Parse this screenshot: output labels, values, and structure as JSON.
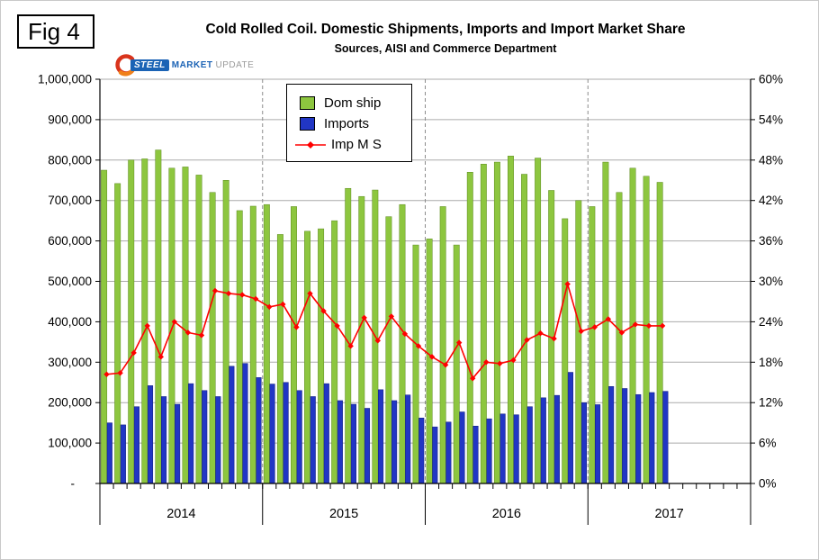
{
  "fig_label": "Fig 4",
  "title": "Cold Rolled Coil. Domestic Shipments, Imports and Import Market Share",
  "subtitle": "Sources, AISI and Commerce Department",
  "logo": {
    "steel": "STEEL",
    "market": "MARKET",
    "update": "UPDATE"
  },
  "legend": [
    {
      "label": "Dom ship",
      "type": "bar",
      "color": "#8dc63f"
    },
    {
      "label": "Imports",
      "type": "bar",
      "color": "#2136c4"
    },
    {
      "label": "Imp M S",
      "type": "line",
      "color": "#ff0000"
    }
  ],
  "chart_data": {
    "type": "bar",
    "combo": true,
    "title": "Cold Rolled Coil. Domestic Shipments, Imports and Import Market Share",
    "subtitle": "Sources, AISI and Commerce Department",
    "months": [
      "2014-01",
      "2014-02",
      "2014-03",
      "2014-04",
      "2014-05",
      "2014-06",
      "2014-07",
      "2014-08",
      "2014-09",
      "2014-10",
      "2014-11",
      "2014-12",
      "2015-01",
      "2015-02",
      "2015-03",
      "2015-04",
      "2015-05",
      "2015-06",
      "2015-07",
      "2015-08",
      "2015-09",
      "2015-10",
      "2015-11",
      "2015-12",
      "2016-01",
      "2016-02",
      "2016-03",
      "2016-04",
      "2016-05",
      "2016-06",
      "2016-07",
      "2016-08",
      "2016-09",
      "2016-10",
      "2016-11",
      "2016-12",
      "2017-01",
      "2017-02",
      "2017-03",
      "2017-04",
      "2017-05",
      "2017-06"
    ],
    "series": [
      {
        "name": "Dom ship",
        "type": "bar",
        "axis": "left",
        "color": "#8dc63f",
        "values": [
          775000,
          742000,
          800000,
          803000,
          825000,
          780000,
          783000,
          763000,
          720000,
          750000,
          675000,
          686000,
          690000,
          616000,
          685000,
          624000,
          630000,
          650000,
          730000,
          710000,
          726000,
          660000,
          690000,
          590000,
          605000,
          685000,
          590000,
          770000,
          790000,
          795000,
          810000,
          765000,
          805000,
          725000,
          655000,
          700000,
          685000,
          795000,
          720000,
          780000,
          760000,
          745000
        ]
      },
      {
        "name": "Imports",
        "type": "bar",
        "axis": "left",
        "color": "#2136c4",
        "values": [
          150000,
          145000,
          190000,
          242000,
          215000,
          196000,
          247000,
          230000,
          215000,
          290000,
          297000,
          262000,
          246000,
          250000,
          230000,
          215000,
          247000,
          205000,
          196000,
          186000,
          232000,
          205000,
          219000,
          162000,
          140000,
          152000,
          177000,
          142000,
          160000,
          172000,
          170000,
          190000,
          212000,
          218000,
          275000,
          200000,
          195000,
          240000,
          235000,
          220000,
          225000,
          228000
        ]
      },
      {
        "name": "Imp M S",
        "type": "line",
        "axis": "right",
        "color": "#ff0000",
        "marker": "diamond",
        "values": [
          16.2,
          16.4,
          19.4,
          23.4,
          18.8,
          24.0,
          22.4,
          22.0,
          28.6,
          28.2,
          28.0,
          27.4,
          26.2,
          26.6,
          23.2,
          28.2,
          25.6,
          23.4,
          20.4,
          24.6,
          21.2,
          24.8,
          22.2,
          20.4,
          18.8,
          17.6,
          20.9,
          15.6,
          18.0,
          17.8,
          18.3,
          21.3,
          22.3,
          21.5,
          29.6,
          22.6,
          23.2,
          24.4,
          22.4,
          23.6,
          23.4,
          23.4
        ]
      }
    ],
    "left_axis": {
      "min": 0,
      "max": 1000000,
      "step": 100000,
      "tick_labels": [
        "-",
        "100,000",
        "200,000",
        "300,000",
        "400,000",
        "500,000",
        "600,000",
        "700,000",
        "800,000",
        "900,000",
        "1,000,000"
      ]
    },
    "right_axis": {
      "min": 0,
      "max": 60,
      "step": 6,
      "tick_labels": [
        "0%",
        "6%",
        "12%",
        "18%",
        "24%",
        "30%",
        "36%",
        "42%",
        "48%",
        "54%",
        "60%"
      ]
    },
    "x_axis": {
      "year_labels": [
        "2014",
        "2015",
        "2016",
        "2017"
      ],
      "months_per_year": 12,
      "data_months": 42
    },
    "grid": true,
    "legend_position": "top-left-inside"
  }
}
